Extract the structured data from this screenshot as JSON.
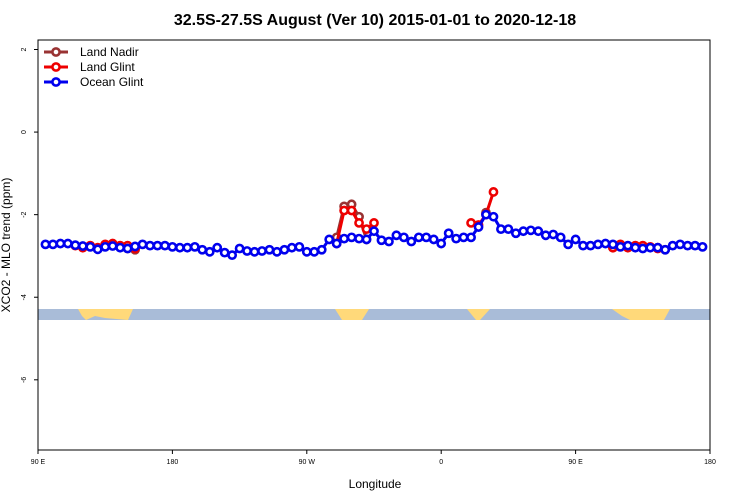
{
  "chart_data": {
    "type": "line",
    "title": "32.5S-27.5S August (Ver 10)   2015-01-01 to 2020-12-18",
    "x_label": "Longitude",
    "y_label": "XCO2 - MLO trend (ppm)",
    "xlim": [
      90,
      540
    ],
    "ylim": [
      -7.7,
      2.23
    ],
    "xticks": [
      {
        "value": 90,
        "label": "90 E"
      },
      180,
      {
        "value": 270,
        "label": "90 W"
      },
      {
        "value": 360,
        "label": "0"
      },
      {
        "value": 450,
        "label": "90 E"
      },
      {
        "value": 540,
        "label": "180"
      }
    ],
    "yticks": [
      2,
      0,
      -2,
      -4,
      -6
    ],
    "legend": "topleft",
    "x": [
      95,
      100,
      105,
      110,
      115,
      120,
      125,
      130,
      135,
      140,
      145,
      150,
      155,
      160,
      165,
      170,
      175,
      180,
      185,
      190,
      195,
      200,
      205,
      210,
      215,
      220,
      225,
      230,
      235,
      240,
      245,
      250,
      255,
      260,
      265,
      270,
      275,
      280,
      285,
      290,
      295,
      300,
      305,
      310,
      315,
      320,
      325,
      330,
      335,
      340,
      345,
      350,
      355,
      360,
      365,
      370,
      375,
      380,
      385,
      390,
      395,
      400,
      405,
      410,
      415,
      420,
      425,
      430,
      435,
      440,
      445,
      450,
      455,
      460,
      465,
      470,
      475,
      480,
      485,
      490,
      495,
      500,
      505,
      510,
      515,
      520,
      525,
      530,
      535
    ],
    "series": [
      {
        "name": "Land Nadir",
        "color": "#993333",
        "values": [
          null,
          null,
          null,
          null,
          null,
          null,
          null,
          null,
          null,
          null,
          null,
          -2.82,
          -2.85,
          null,
          null,
          null,
          null,
          null,
          null,
          null,
          null,
          null,
          null,
          null,
          null,
          null,
          null,
          null,
          null,
          null,
          null,
          null,
          null,
          null,
          null,
          null,
          null,
          null,
          null,
          -2.55,
          -1.8,
          -1.75,
          -2.05,
          -2.6,
          null,
          null,
          null,
          null,
          null,
          null,
          null,
          null,
          null,
          null,
          null,
          null,
          null,
          null,
          null,
          -1.95,
          null,
          null,
          null,
          null,
          null,
          null,
          null,
          null,
          null,
          null,
          null,
          null,
          null,
          null,
          null,
          null,
          -2.8,
          -2.75,
          null,
          null,
          null,
          null,
          -2.8,
          -2.85,
          null,
          null,
          null,
          null,
          null
        ]
      },
      {
        "name": "Land Glint",
        "color": "#ee0000",
        "values": [
          null,
          null,
          null,
          null,
          -2.75,
          -2.8,
          -2.75,
          -2.8,
          -2.72,
          -2.7,
          -2.75,
          -2.75,
          -2.82,
          null,
          null,
          null,
          null,
          null,
          null,
          null,
          null,
          null,
          null,
          null,
          null,
          null,
          null,
          null,
          null,
          null,
          null,
          null,
          null,
          null,
          null,
          null,
          null,
          null,
          null,
          -2.7,
          -1.9,
          -1.9,
          -2.2,
          -2.35,
          -2.2,
          null,
          null,
          null,
          null,
          null,
          null,
          null,
          null,
          null,
          null,
          null,
          null,
          -2.2,
          -2.25,
          -2.0,
          -1.45,
          null,
          null,
          null,
          null,
          null,
          null,
          null,
          null,
          null,
          null,
          null,
          null,
          null,
          null,
          null,
          -2.8,
          -2.72,
          -2.8,
          -2.75,
          -2.75,
          -2.78,
          -2.82,
          null,
          null,
          null,
          null,
          null,
          null
        ]
      },
      {
        "name": "Ocean Glint",
        "color": "#0000ee",
        "values": [
          -2.72,
          -2.72,
          -2.7,
          -2.7,
          -2.74,
          -2.76,
          -2.78,
          -2.84,
          -2.78,
          -2.76,
          -2.8,
          -2.82,
          -2.77,
          -2.72,
          -2.75,
          -2.75,
          -2.75,
          -2.78,
          -2.8,
          -2.8,
          -2.78,
          -2.85,
          -2.9,
          -2.8,
          -2.92,
          -2.98,
          -2.82,
          -2.88,
          -2.9,
          -2.88,
          -2.85,
          -2.9,
          -2.85,
          -2.8,
          -2.78,
          -2.9,
          -2.9,
          -2.85,
          -2.6,
          -2.7,
          -2.58,
          -2.55,
          -2.58,
          -2.6,
          -2.4,
          -2.62,
          -2.65,
          -2.5,
          -2.55,
          -2.65,
          -2.55,
          -2.55,
          -2.6,
          -2.7,
          -2.45,
          -2.58,
          -2.55,
          -2.55,
          -2.3,
          -2.0,
          -2.05,
          -2.35,
          -2.35,
          -2.45,
          -2.4,
          -2.38,
          -2.4,
          -2.5,
          -2.48,
          -2.55,
          -2.72,
          -2.6,
          -2.75,
          -2.75,
          -2.72,
          -2.7,
          -2.72,
          -2.78,
          -2.75,
          -2.8,
          -2.82,
          -2.8,
          -2.8,
          -2.85,
          -2.75,
          -2.72,
          -2.75,
          -2.75,
          -2.78
        ]
      }
    ]
  }
}
